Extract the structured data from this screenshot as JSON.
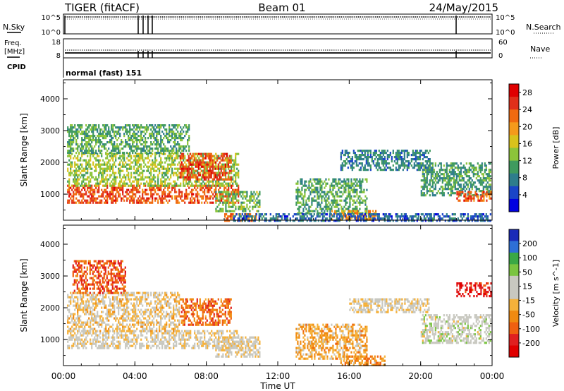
{
  "header": {
    "radar": "TIGER (fitACF)",
    "beam": "Beam 01",
    "date": "24/May/2015"
  },
  "top_panels": {
    "nsky_label": "N.Sky",
    "nsky_tick_top": "10^5",
    "nsky_tick_bottom": "10^0",
    "nsearch_label": "N.Search",
    "nsearch_tick_top": "10^5",
    "nsearch_tick_bottom": "10^0",
    "freq_label_1": "Freq.",
    "freq_label_2": "[MHz]",
    "freq_tick_top": "18",
    "freq_tick_bottom": "8",
    "nave_label": "Nave",
    "nave_tick_top": "60",
    "nave_tick_bottom": "0",
    "cpid_label": "CPID",
    "cpid_value": "normal (fast) 151"
  },
  "colors": {
    "power_scale": [
      "#0000e0",
      "#1a45c8",
      "#2e7d8c",
      "#3f9a5e",
      "#8cc43a",
      "#d9c21c",
      "#f59a1b",
      "#f06a10",
      "#e0301a",
      "#e00000"
    ],
    "velocity_scale": [
      "#1a2ab8",
      "#2e6fd6",
      "#3aa845",
      "#7ac440",
      "#c8c8c0",
      "#c8c8c0",
      "#f5b13a",
      "#f08a10",
      "#f06010",
      "#e02020",
      "#e00000"
    ]
  },
  "chart_data": [
    {
      "type": "heatmap",
      "title": "Power",
      "xlabel": "Time UT",
      "ylabel": "Slant Range [km]",
      "x_ticks": [
        "00:00",
        "04:00",
        "08:00",
        "12:00",
        "16:00",
        "20:00",
        "00:00"
      ],
      "x_range_hours": [
        0,
        24
      ],
      "y_ticks": [
        "1000",
        "2000",
        "3000",
        "4000"
      ],
      "y_range_km": [
        180,
        4600
      ],
      "colorbar_label": "Power [dB]",
      "colorbar_ticks": [
        "4",
        "8",
        "12",
        "16",
        "20",
        "24",
        "28"
      ],
      "colorbar_range": [
        0,
        30
      ],
      "regions": [
        {
          "t0": 0.2,
          "t1": 9.8,
          "r0": 750,
          "r1": 1300,
          "v": 24
        },
        {
          "t0": 0.2,
          "t1": 9.8,
          "r0": 1300,
          "r1": 2300,
          "v": 14
        },
        {
          "t0": 0.2,
          "t1": 7.0,
          "r0": 2300,
          "r1": 3200,
          "v": 11
        },
        {
          "t0": 6.5,
          "t1": 9.4,
          "r0": 1500,
          "r1": 2300,
          "v": 25
        },
        {
          "t0": 8.5,
          "t1": 11.0,
          "r0": 500,
          "r1": 1100,
          "v": 12
        },
        {
          "t0": 9.0,
          "t1": 10.8,
          "r0": 200,
          "r1": 400,
          "v": 22
        },
        {
          "t0": 13.0,
          "t1": 17.0,
          "r0": 400,
          "r1": 1500,
          "v": 11
        },
        {
          "t0": 15.0,
          "t1": 17.5,
          "r0": 200,
          "r1": 500,
          "v": 20
        },
        {
          "t0": 15.5,
          "t1": 20.5,
          "r0": 1800,
          "r1": 2400,
          "v": 8
        },
        {
          "t0": 20.0,
          "t1": 23.9,
          "r0": 1000,
          "r1": 2000,
          "v": 10
        },
        {
          "t0": 22.0,
          "t1": 23.9,
          "r0": 800,
          "r1": 1100,
          "v": 24
        },
        {
          "t0": 9.5,
          "t1": 23.9,
          "r0": 200,
          "r1": 400,
          "v": 6
        }
      ]
    },
    {
      "type": "heatmap",
      "title": "Velocity",
      "xlabel": "Time UT",
      "ylabel": "Slant Range [km]",
      "x_ticks": [
        "00:00",
        "04:00",
        "08:00",
        "12:00",
        "16:00",
        "20:00",
        "00:00"
      ],
      "x_range_hours": [
        0,
        24
      ],
      "y_ticks": [
        "1000",
        "2000",
        "3000",
        "4000"
      ],
      "y_range_km": [
        180,
        4600
      ],
      "colorbar_label": "Velocity [m s^-1]",
      "colorbar_ticks": [
        "200",
        "100",
        "50",
        "15",
        "-15",
        "-50",
        "-100",
        "-200"
      ],
      "colorbar_range": [
        -250,
        250
      ],
      "regions": [
        {
          "t0": 0.2,
          "t1": 9.8,
          "r0": 750,
          "r1": 1300,
          "v": 0
        },
        {
          "t0": 0.2,
          "t1": 6.5,
          "r0": 1300,
          "r1": 2500,
          "v": -20
        },
        {
          "t0": 0.5,
          "t1": 3.5,
          "r0": 2500,
          "r1": 3500,
          "v": -150
        },
        {
          "t0": 6.5,
          "t1": 9.4,
          "r0": 1500,
          "r1": 2300,
          "v": -120
        },
        {
          "t0": 8.5,
          "t1": 11.0,
          "r0": 500,
          "r1": 1100,
          "v": 0
        },
        {
          "t0": 13.0,
          "t1": 17.0,
          "r0": 400,
          "r1": 1500,
          "v": -60
        },
        {
          "t0": 15.5,
          "t1": 18.0,
          "r0": 200,
          "r1": 500,
          "v": -80
        },
        {
          "t0": 16.0,
          "t1": 20.5,
          "r0": 1900,
          "r1": 2300,
          "v": 0
        },
        {
          "t0": 20.0,
          "t1": 23.9,
          "r0": 900,
          "r1": 1800,
          "v": 30
        },
        {
          "t0": 22.0,
          "t1": 23.9,
          "r0": 2400,
          "r1": 2800,
          "v": -200
        }
      ]
    }
  ]
}
